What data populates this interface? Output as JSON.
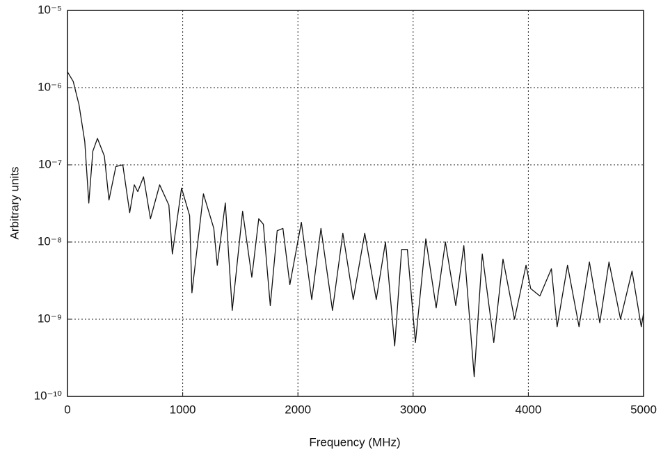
{
  "chart_data": {
    "type": "line",
    "xlabel": "Frequency (MHz)",
    "ylabel": "Arbitrary units",
    "yscale": "log",
    "grid": true,
    "color": "#111111",
    "xlim": [
      0,
      5000
    ],
    "xticks": [
      0,
      1000,
      2000,
      3000,
      4000,
      5000
    ],
    "ylim": [
      1e-10,
      1e-05
    ],
    "yticks": [
      {
        "value": 1e-10,
        "label": "10⁻¹⁰"
      },
      {
        "value": 1e-09,
        "label": "10⁻⁹"
      },
      {
        "value": 1e-08,
        "label": "10⁻⁸"
      },
      {
        "value": 1e-07,
        "label": "10⁻⁷"
      },
      {
        "value": 1e-06,
        "label": "10⁻⁶"
      },
      {
        "value": 1e-05,
        "label": "10⁻⁵"
      }
    ],
    "x": [
      0,
      50,
      100,
      150,
      185,
      220,
      260,
      320,
      360,
      420,
      480,
      540,
      580,
      610,
      660,
      720,
      800,
      880,
      910,
      990,
      1060,
      1080,
      1180,
      1270,
      1300,
      1370,
      1430,
      1520,
      1600,
      1660,
      1700,
      1760,
      1820,
      1870,
      1930,
      2030,
      2120,
      2200,
      2300,
      2390,
      2480,
      2580,
      2680,
      2760,
      2840,
      2900,
      2950,
      3020,
      3110,
      3200,
      3280,
      3370,
      3440,
      3530,
      3600,
      3700,
      3780,
      3880,
      3980,
      4020,
      4100,
      4200,
      4250,
      4340,
      4440,
      4530,
      4620,
      4700,
      4800,
      4900,
      4980,
      5000
    ],
    "values": [
      1.6e-06,
      1.2e-06,
      6e-07,
      2e-07,
      3.2e-08,
      1.5e-07,
      2.2e-07,
      1.3e-07,
      3.5e-08,
      9.5e-08,
      1e-07,
      2.4e-08,
      5.5e-08,
      4.5e-08,
      7e-08,
      2e-08,
      5.5e-08,
      3e-08,
      7e-09,
      5e-08,
      2.2e-08,
      2.2e-09,
      4.2e-08,
      1.5e-08,
      5e-09,
      3.2e-08,
      1.3e-09,
      2.5e-08,
      3.5e-09,
      2e-08,
      1.7e-08,
      1.5e-09,
      1.4e-08,
      1.5e-08,
      2.8e-09,
      1.8e-08,
      1.8e-09,
      1.5e-08,
      1.3e-09,
      1.3e-08,
      1.8e-09,
      1.3e-08,
      1.8e-09,
      1e-08,
      4.5e-10,
      8e-09,
      8e-09,
      5e-10,
      1.1e-08,
      1.4e-09,
      1e-08,
      1.5e-09,
      9e-09,
      1.8e-10,
      7e-09,
      5e-10,
      6e-09,
      1e-09,
      5e-09,
      2.5e-09,
      2e-09,
      4.5e-09,
      8e-10,
      5e-09,
      8e-10,
      5.5e-09,
      9e-10,
      5.5e-09,
      1e-09,
      4.2e-09,
      8e-10,
      1.2e-09
    ]
  }
}
